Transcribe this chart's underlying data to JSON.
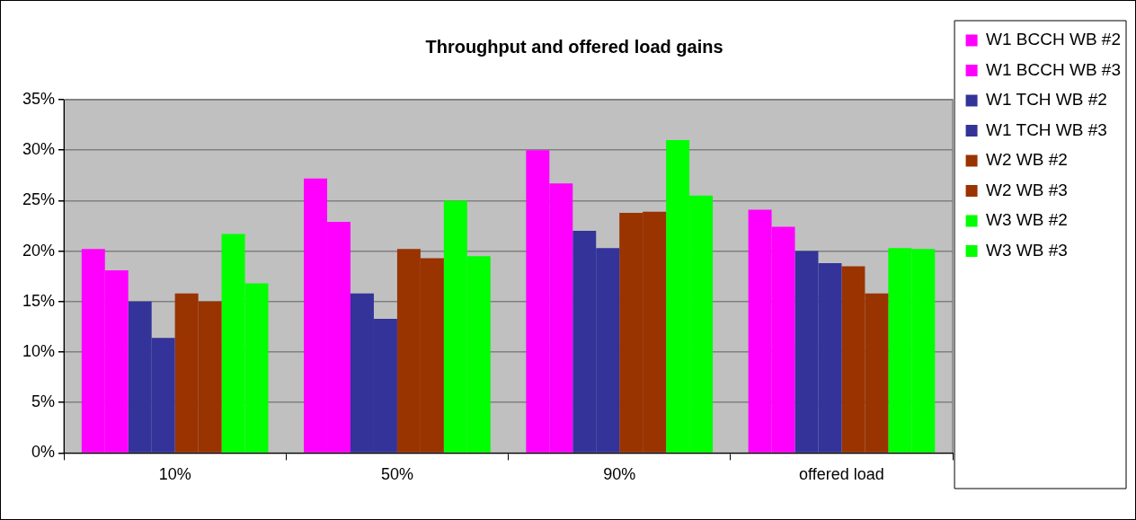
{
  "chart_data": {
    "type": "bar",
    "title": "Throughput and offered load gains",
    "categories": [
      "10%",
      "50%",
      "90%",
      "offered load"
    ],
    "series": [
      {
        "name": "W1 BCCH WB #2",
        "color": "#ff00ff",
        "values": [
          20.2,
          27.2,
          30.0,
          24.1
        ]
      },
      {
        "name": "W1 BCCH WB #3",
        "color": "#ff00ff",
        "values": [
          18.1,
          22.9,
          26.7,
          22.4
        ]
      },
      {
        "name": "W1 TCH WB #2",
        "color": "#333399",
        "values": [
          15.0,
          15.8,
          22.0,
          20.0
        ]
      },
      {
        "name": "W1 TCH WB #3",
        "color": "#333399",
        "values": [
          11.4,
          13.3,
          20.3,
          18.8
        ]
      },
      {
        "name": "W2 WB #2",
        "color": "#993300",
        "values": [
          15.8,
          20.2,
          23.8,
          18.5
        ]
      },
      {
        "name": "W2 WB #3",
        "color": "#993300",
        "values": [
          15.0,
          19.3,
          23.9,
          15.8
        ]
      },
      {
        "name": "W3 WB #2",
        "color": "#00ff00",
        "values": [
          21.7,
          25.0,
          31.0,
          20.3
        ]
      },
      {
        "name": "W3 WB #3",
        "color": "#00ff00",
        "values": [
          16.8,
          19.5,
          25.5,
          20.2
        ]
      }
    ],
    "ylim": [
      0,
      35
    ],
    "yticks": [
      {
        "value": 0,
        "label": "0%"
      },
      {
        "value": 5,
        "label": "5%"
      },
      {
        "value": 10,
        "label": "10%"
      },
      {
        "value": 15,
        "label": "15%"
      },
      {
        "value": 20,
        "label": "20%"
      },
      {
        "value": 25,
        "label": "25%"
      },
      {
        "value": 30,
        "label": "30%"
      },
      {
        "value": 35,
        "label": "35%"
      }
    ],
    "grid": "y",
    "legend": "right"
  }
}
